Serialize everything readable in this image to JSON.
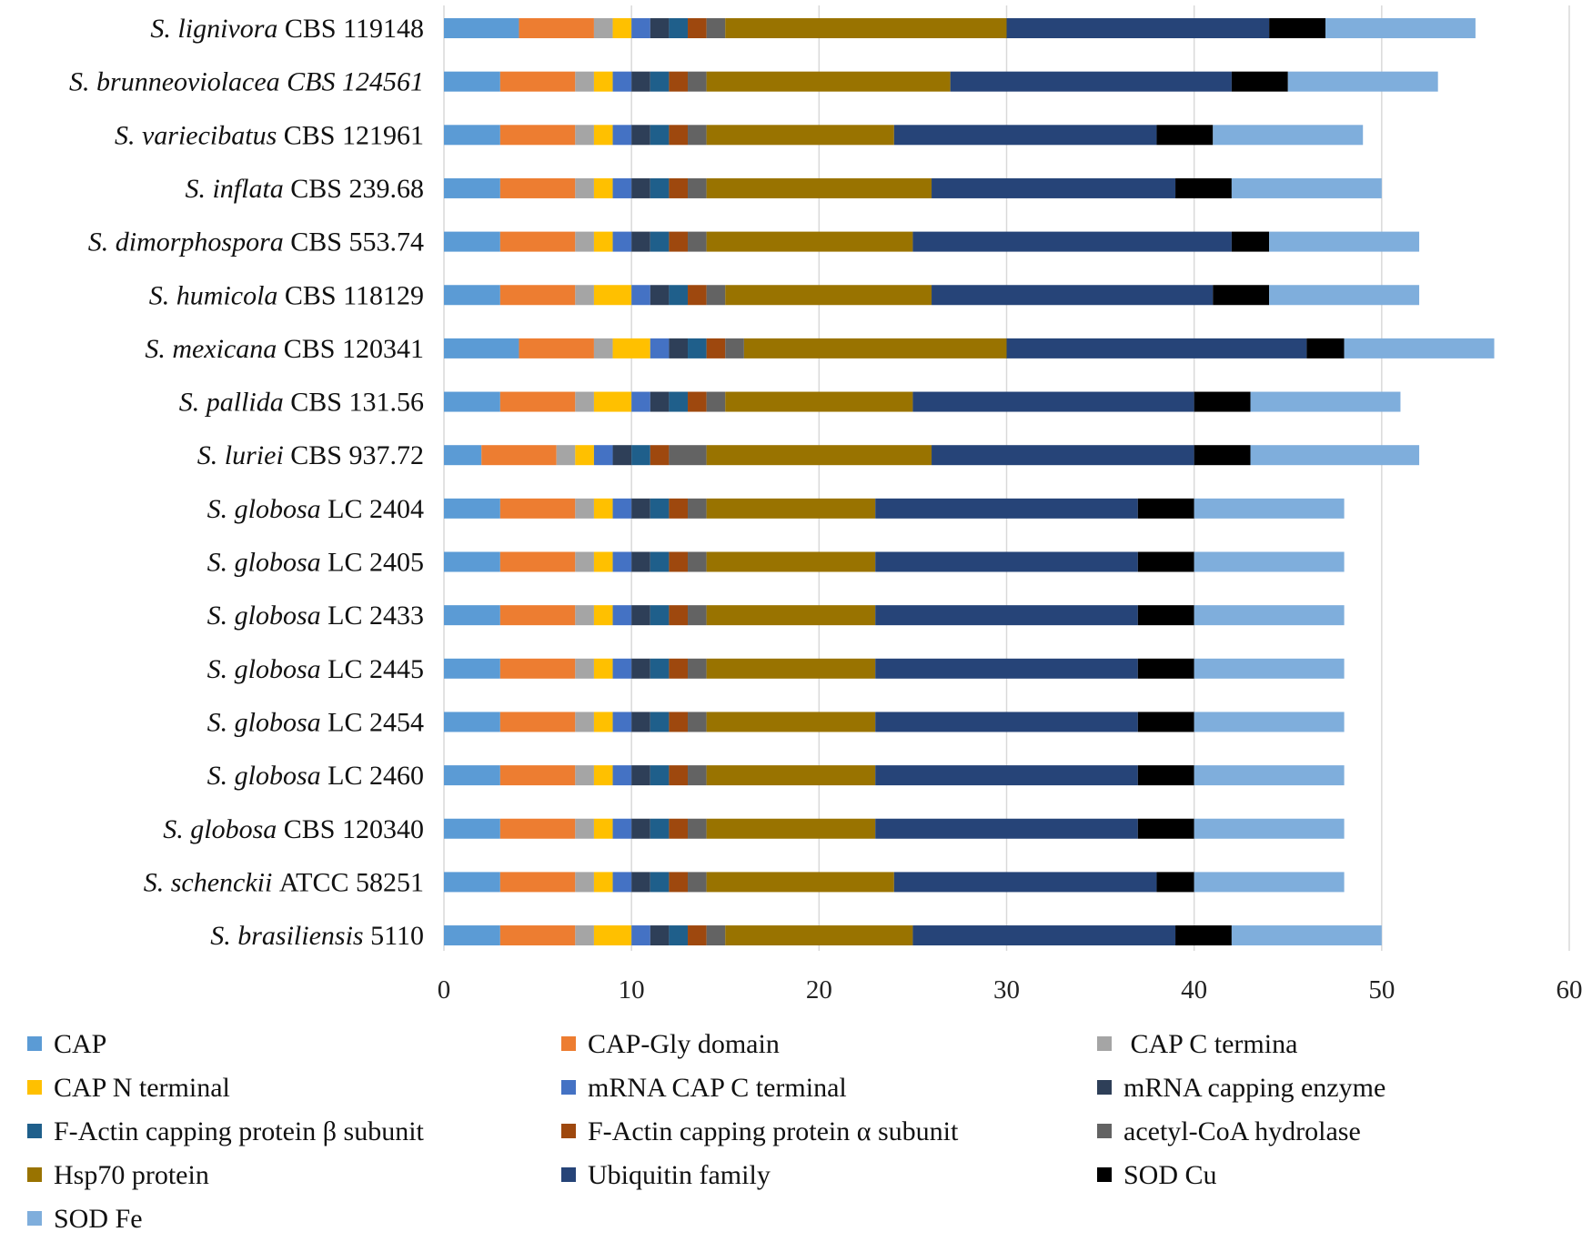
{
  "chart_data": {
    "type": "bar",
    "orientation": "horizontal",
    "stacked": true,
    "title": "",
    "xlabel": "",
    "ylabel": "",
    "xlim": [
      0,
      60
    ],
    "xticks": [
      0,
      10,
      20,
      30,
      40,
      50,
      60
    ],
    "grid": "vertical",
    "legend_position": "bottom",
    "categories": [
      {
        "species": "S. lignivora",
        "strain": "CBS 119148"
      },
      {
        "species": "S. brunneoviolacea CBS 124561",
        "strain": ""
      },
      {
        "species": "S. variecibatus",
        "strain": "CBS 121961"
      },
      {
        "species": "S. inflata",
        "strain": "CBS 239.68"
      },
      {
        "species": "S. dimorphospora",
        "strain": "CBS 553.74"
      },
      {
        "species": "S. humicola",
        "strain": "CBS 118129"
      },
      {
        "species": "S. mexicana",
        "strain": "CBS 120341"
      },
      {
        "species": "S. pallida",
        "strain": "CBS 131.56"
      },
      {
        "species": "S. luriei",
        "strain": "CBS 937.72"
      },
      {
        "species": "S. globosa",
        "strain": "LC 2404"
      },
      {
        "species": "S. globosa",
        "strain": "LC 2405"
      },
      {
        "species": "S. globosa",
        "strain": "LC 2433"
      },
      {
        "species": "S. globosa",
        "strain": "LC 2445"
      },
      {
        "species": "S. globosa",
        "strain": "LC 2454"
      },
      {
        "species": "S. globosa",
        "strain": "LC 2460"
      },
      {
        "species": "S. globosa",
        "strain": "CBS 120340"
      },
      {
        "species": "S. schenckii",
        "strain": "ATCC 58251"
      },
      {
        "species": "S. brasiliensis",
        "strain": "5110"
      }
    ],
    "series": [
      {
        "name": "CAP",
        "color": "#5B9BD5",
        "values": [
          4,
          3,
          3,
          3,
          3,
          3,
          4,
          3,
          2,
          3,
          3,
          3,
          3,
          3,
          3,
          3,
          3,
          3
        ]
      },
      {
        "name": "CAP-Gly domain",
        "color": "#ED7D31",
        "values": [
          4,
          4,
          4,
          4,
          4,
          4,
          4,
          4,
          4,
          4,
          4,
          4,
          4,
          4,
          4,
          4,
          4,
          4
        ]
      },
      {
        "name": " CAP C termina",
        "color": "#A5A5A5",
        "values": [
          1,
          1,
          1,
          1,
          1,
          1,
          1,
          1,
          1,
          1,
          1,
          1,
          1,
          1,
          1,
          1,
          1,
          1
        ]
      },
      {
        "name": "CAP N terminal",
        "color": "#FFC000",
        "values": [
          1,
          1,
          1,
          1,
          1,
          2,
          2,
          2,
          1,
          1,
          1,
          1,
          1,
          1,
          1,
          1,
          1,
          2
        ]
      },
      {
        "name": "mRNA CAP C terminal",
        "color": "#4472C4",
        "values": [
          1,
          1,
          1,
          1,
          1,
          1,
          1,
          1,
          1,
          1,
          1,
          1,
          1,
          1,
          1,
          1,
          1,
          1
        ]
      },
      {
        "name": "mRNA capping enzyme",
        "color": "#2E3F58",
        "values": [
          1,
          1,
          1,
          1,
          1,
          1,
          1,
          1,
          1,
          1,
          1,
          1,
          1,
          1,
          1,
          1,
          1,
          1
        ]
      },
      {
        "name": "F-Actin capping protein β subunit",
        "color": "#1F5F8B",
        "values": [
          1,
          1,
          1,
          1,
          1,
          1,
          1,
          1,
          1,
          1,
          1,
          1,
          1,
          1,
          1,
          1,
          1,
          1
        ]
      },
      {
        "name": "F-Actin capping protein α subunit",
        "color": "#9E480E",
        "values": [
          1,
          1,
          1,
          1,
          1,
          1,
          1,
          1,
          1,
          1,
          1,
          1,
          1,
          1,
          1,
          1,
          1,
          1
        ]
      },
      {
        "name": "acetyl-CoA hydrolase",
        "color": "#636363",
        "values": [
          1,
          1,
          1,
          1,
          1,
          1,
          1,
          1,
          2,
          1,
          1,
          1,
          1,
          1,
          1,
          1,
          1,
          1
        ]
      },
      {
        "name": "Hsp70 protein",
        "color": "#997300",
        "values": [
          15,
          13,
          10,
          12,
          11,
          11,
          14,
          10,
          12,
          9,
          9,
          9,
          9,
          9,
          9,
          9,
          10,
          10
        ]
      },
      {
        "name": "Ubiquitin family",
        "color": "#264478",
        "values": [
          14,
          15,
          14,
          13,
          17,
          15,
          16,
          15,
          14,
          14,
          14,
          14,
          14,
          14,
          14,
          14,
          14,
          14
        ]
      },
      {
        "name": "SOD Cu",
        "color": "#000000",
        "values": [
          3,
          3,
          3,
          3,
          2,
          3,
          2,
          3,
          3,
          3,
          3,
          3,
          3,
          3,
          3,
          3,
          2,
          3
        ]
      },
      {
        "name": "SOD Fe",
        "color": "#7FAEDC",
        "values": [
          8,
          8,
          8,
          8,
          8,
          8,
          8,
          8,
          9,
          8,
          8,
          8,
          8,
          8,
          8,
          8,
          8,
          8
        ]
      }
    ]
  }
}
